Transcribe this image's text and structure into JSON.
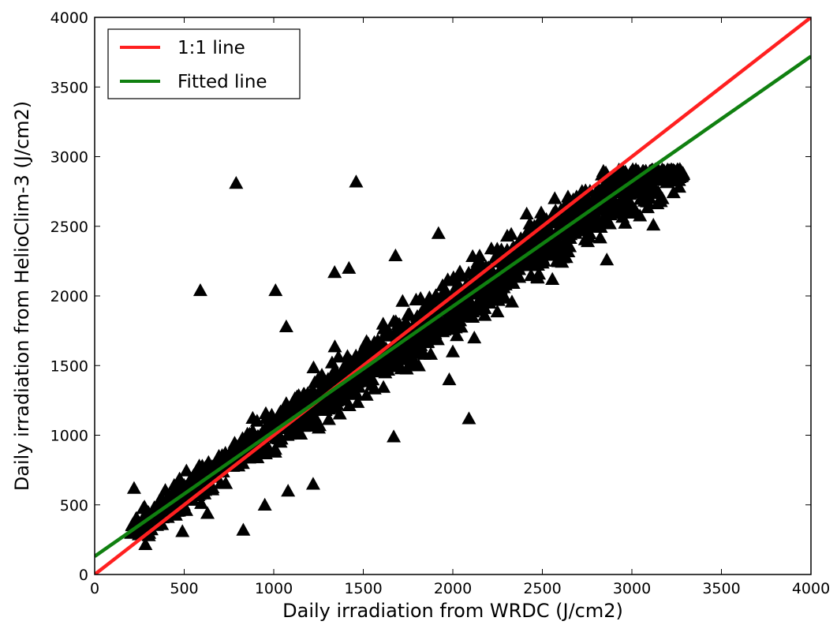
{
  "chart_data": {
    "type": "scatter",
    "xlabel": "Daily irradiation from WRDC (J/cm2)",
    "ylabel": "Daily irradiation from HelioClim-3 (J/cm2)",
    "xlim": [
      0,
      4000
    ],
    "ylim": [
      0,
      4000
    ],
    "xticks": [
      "0",
      "500",
      "1000",
      "1500",
      "2000",
      "2500",
      "3000",
      "3500",
      "4000"
    ],
    "yticks": [
      "0",
      "500",
      "1000",
      "1500",
      "2000",
      "2500",
      "3000",
      "3500",
      "4000"
    ],
    "grid": false,
    "legend_position": "top-left",
    "marker": "triangle",
    "marker_color": "#000000",
    "lines": [
      {
        "name": "1:1 line",
        "color": "#ff2020",
        "x": [
          0,
          4000
        ],
        "y": [
          0,
          4000
        ]
      },
      {
        "name": "Fitted line",
        "color": "#108010",
        "x": [
          0,
          4000
        ],
        "y": [
          130,
          3720
        ]
      }
    ],
    "scatter_trend": {
      "slope": 0.9,
      "intercept": 130,
      "x_range": [
        200,
        3290
      ]
    },
    "outliers": [
      {
        "x": 790,
        "y": 2810
      },
      {
        "x": 1460,
        "y": 2820
      },
      {
        "x": 590,
        "y": 2040
      },
      {
        "x": 1010,
        "y": 2040
      },
      {
        "x": 1070,
        "y": 1780
      },
      {
        "x": 830,
        "y": 320
      },
      {
        "x": 2090,
        "y": 1120
      },
      {
        "x": 1670,
        "y": 990
      },
      {
        "x": 3120,
        "y": 2510
      },
      {
        "x": 2860,
        "y": 2260
      },
      {
        "x": 3170,
        "y": 2700
      },
      {
        "x": 220,
        "y": 620
      },
      {
        "x": 490,
        "y": 310
      },
      {
        "x": 630,
        "y": 440
      },
      {
        "x": 1220,
        "y": 650
      },
      {
        "x": 1080,
        "y": 600
      },
      {
        "x": 950,
        "y": 500
      },
      {
        "x": 1810,
        "y": 1500
      },
      {
        "x": 2000,
        "y": 1600
      },
      {
        "x": 2120,
        "y": 1700
      },
      {
        "x": 1680,
        "y": 2290
      },
      {
        "x": 1340,
        "y": 2170
      },
      {
        "x": 1420,
        "y": 2200
      },
      {
        "x": 2400,
        "y": 2420
      },
      {
        "x": 1920,
        "y": 2450
      },
      {
        "x": 1980,
        "y": 1400
      }
    ]
  }
}
